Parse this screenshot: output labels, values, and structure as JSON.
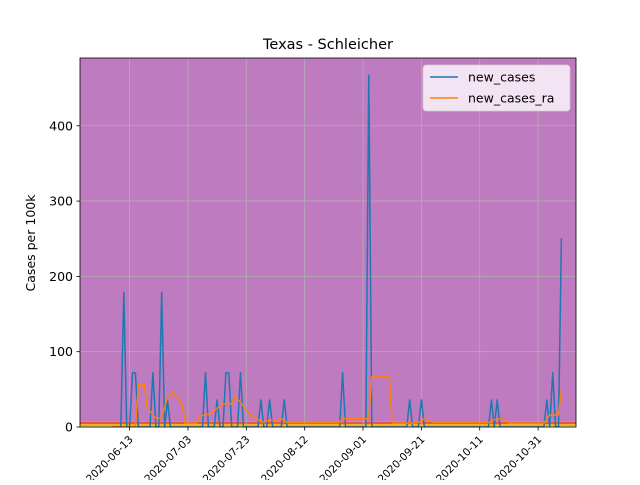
{
  "chart_data": {
    "type": "line",
    "title": "Texas - Schleicher",
    "xlabel": "",
    "ylabel": "Cases per 100k",
    "x_tick_labels": [
      "2020-06-13",
      "2020-07-03",
      "2020-07-23",
      "2020-08-12",
      "2020-09-01",
      "2020-09-21",
      "2020-10-11",
      "2020-10-31"
    ],
    "y_tick_labels": [
      "0",
      "100",
      "200",
      "300",
      "400"
    ],
    "xlim": [
      "2020-05-27",
      "2020-11-13"
    ],
    "ylim": [
      0,
      490
    ],
    "grid": true,
    "legend_position": "top-right",
    "background_bands": [
      {
        "from": 0,
        "to": 1,
        "color": "#e8f4a0"
      },
      {
        "from": 1,
        "to": 4,
        "color": "#f2b01e"
      },
      {
        "from": 4,
        "to": 7,
        "color": "#e9534b"
      },
      {
        "from": 7,
        "to": 490,
        "color": "#bf7bbf"
      }
    ],
    "series": [
      {
        "name": "new_cases",
        "color": "#1f77b4",
        "points": [
          [
            "2020-06-07",
            0
          ],
          [
            "2020-06-10",
            0
          ],
          [
            "2020-06-11",
            179
          ],
          [
            "2020-06-12",
            0
          ],
          [
            "2020-06-13",
            0
          ],
          [
            "2020-06-14",
            72
          ],
          [
            "2020-06-15",
            72
          ],
          [
            "2020-06-16",
            0
          ],
          [
            "2020-06-20",
            0
          ],
          [
            "2020-06-21",
            72
          ],
          [
            "2020-06-22",
            0
          ],
          [
            "2020-06-23",
            0
          ],
          [
            "2020-06-24",
            179
          ],
          [
            "2020-06-25",
            0
          ],
          [
            "2020-06-26",
            36
          ],
          [
            "2020-06-27",
            0
          ],
          [
            "2020-07-08",
            0
          ],
          [
            "2020-07-09",
            72
          ],
          [
            "2020-07-10",
            0
          ],
          [
            "2020-07-12",
            0
          ],
          [
            "2020-07-13",
            36
          ],
          [
            "2020-07-14",
            0
          ],
          [
            "2020-07-15",
            0
          ],
          [
            "2020-07-16",
            72
          ],
          [
            "2020-07-17",
            72
          ],
          [
            "2020-07-18",
            0
          ],
          [
            "2020-07-20",
            0
          ],
          [
            "2020-07-21",
            72
          ],
          [
            "2020-07-22",
            0
          ],
          [
            "2020-07-27",
            0
          ],
          [
            "2020-07-28",
            36
          ],
          [
            "2020-07-29",
            0
          ],
          [
            "2020-07-30",
            0
          ],
          [
            "2020-07-31",
            36
          ],
          [
            "2020-08-01",
            0
          ],
          [
            "2020-08-04",
            0
          ],
          [
            "2020-08-05",
            36
          ],
          [
            "2020-08-06",
            0
          ],
          [
            "2020-08-24",
            0
          ],
          [
            "2020-08-25",
            72
          ],
          [
            "2020-08-26",
            0
          ],
          [
            "2020-09-02",
            0
          ],
          [
            "2020-09-03",
            467
          ],
          [
            "2020-09-04",
            0
          ],
          [
            "2020-09-16",
            0
          ],
          [
            "2020-09-17",
            36
          ],
          [
            "2020-09-18",
            0
          ],
          [
            "2020-09-20",
            0
          ],
          [
            "2020-09-21",
            36
          ],
          [
            "2020-09-22",
            0
          ],
          [
            "2020-10-14",
            0
          ],
          [
            "2020-10-15",
            36
          ],
          [
            "2020-10-16",
            0
          ],
          [
            "2020-10-17",
            36
          ],
          [
            "2020-10-18",
            0
          ],
          [
            "2020-11-02",
            0
          ],
          [
            "2020-11-03",
            36
          ],
          [
            "2020-11-04",
            0
          ],
          [
            "2020-11-05",
            72
          ],
          [
            "2020-11-06",
            0
          ],
          [
            "2020-11-07",
            0
          ],
          [
            "2020-11-08",
            251
          ]
        ]
      },
      {
        "name": "new_cases_ra",
        "color": "#ff7f0e",
        "points": [
          [
            "2020-06-07",
            0
          ],
          [
            "2020-06-15",
            0
          ],
          [
            "2020-06-16",
            56
          ],
          [
            "2020-06-18",
            56
          ],
          [
            "2020-06-19",
            26
          ],
          [
            "2020-06-20",
            21
          ],
          [
            "2020-06-21",
            16
          ],
          [
            "2020-06-22",
            12
          ],
          [
            "2020-06-24",
            12
          ],
          [
            "2020-06-25",
            25
          ],
          [
            "2020-06-26",
            40
          ],
          [
            "2020-06-28",
            46
          ],
          [
            "2020-06-29",
            38
          ],
          [
            "2020-06-30",
            36
          ],
          [
            "2020-07-01",
            30
          ],
          [
            "2020-07-02",
            5
          ],
          [
            "2020-07-06",
            5
          ],
          [
            "2020-07-07",
            15
          ],
          [
            "2020-07-09",
            16
          ],
          [
            "2020-07-11",
            18
          ],
          [
            "2020-07-13",
            25
          ],
          [
            "2020-07-15",
            30
          ],
          [
            "2020-07-17",
            32
          ],
          [
            "2020-07-18",
            30
          ],
          [
            "2020-07-19",
            40
          ],
          [
            "2020-07-21",
            33
          ],
          [
            "2020-07-23",
            22
          ],
          [
            "2020-07-25",
            15
          ],
          [
            "2020-07-27",
            10
          ],
          [
            "2020-07-29",
            6
          ],
          [
            "2020-07-31",
            10
          ],
          [
            "2020-08-02",
            9
          ],
          [
            "2020-08-04",
            11
          ],
          [
            "2020-08-06",
            6
          ],
          [
            "2020-08-24",
            6
          ],
          [
            "2020-08-25",
            11
          ],
          [
            "2020-08-31",
            11
          ],
          [
            "2020-09-03",
            11
          ],
          [
            "2020-09-04",
            67
          ],
          [
            "2020-09-10",
            67
          ],
          [
            "2020-09-11",
            5
          ],
          [
            "2020-09-17",
            5
          ],
          [
            "2020-09-20",
            6
          ],
          [
            "2020-09-22",
            11
          ],
          [
            "2020-09-25",
            6
          ],
          [
            "2020-10-15",
            6
          ],
          [
            "2020-10-16",
            10
          ],
          [
            "2020-10-19",
            11
          ],
          [
            "2020-10-21",
            5
          ],
          [
            "2020-11-02",
            5
          ],
          [
            "2020-11-04",
            16
          ],
          [
            "2020-11-07",
            16
          ],
          [
            "2020-11-08",
            50
          ]
        ]
      }
    ]
  }
}
